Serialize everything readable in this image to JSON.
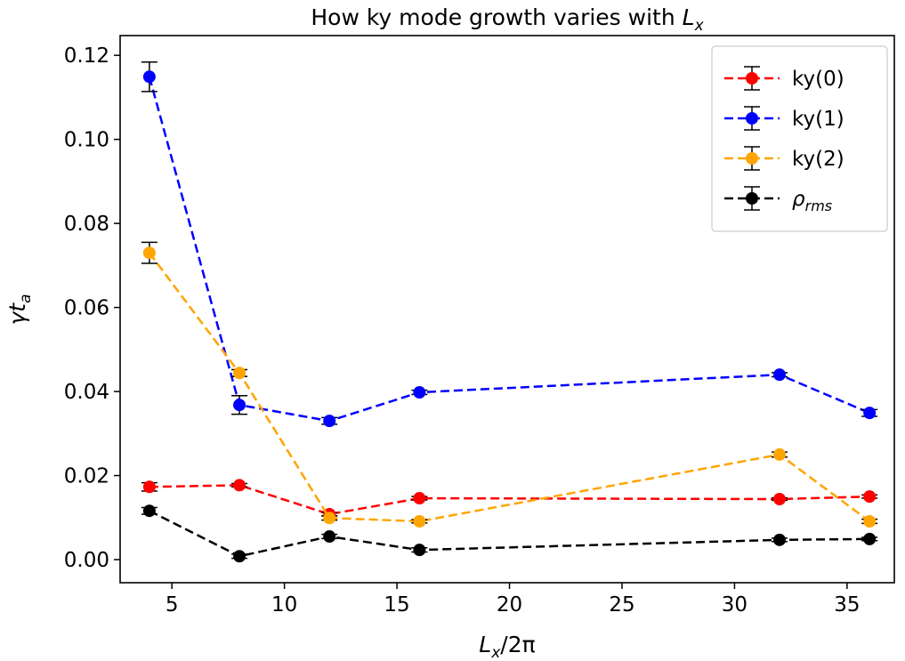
{
  "chart_data": {
    "type": "line",
    "title": {
      "main": "How ky mode growth varies with ",
      "var": "L",
      "sub": "x"
    },
    "xlabel": {
      "var": "L",
      "sub": "x",
      "rest": "/2π"
    },
    "ylabel": {
      "var": "γt",
      "sub": "a"
    },
    "xlim": [
      2.7,
      37.1
    ],
    "ylim": [
      -0.0055,
      0.1247
    ],
    "xticks": [
      5,
      10,
      15,
      20,
      25,
      30,
      35
    ],
    "xtick_labels": [
      "5",
      "10",
      "15",
      "20",
      "25",
      "30",
      "35"
    ],
    "yticks": [
      0.0,
      0.02,
      0.04,
      0.06,
      0.08,
      0.1,
      0.12
    ],
    "ytick_labels": [
      "0.00",
      "0.02",
      "0.04",
      "0.06",
      "0.08",
      "0.10",
      "0.12"
    ],
    "grid": false,
    "legend_position": "top-right",
    "x": [
      4,
      8,
      12,
      16,
      32,
      36
    ],
    "series": [
      {
        "name": "ky(0)",
        "color": "#ff0000",
        "values": [
          0.0173,
          0.0177,
          0.0108,
          0.0146,
          0.0144,
          0.015
        ],
        "errors": [
          0.001,
          0.0004,
          0.0004,
          0.0004,
          0.0003,
          0.0004
        ]
      },
      {
        "name": "ky(1)",
        "color": "#0000ff",
        "values": [
          0.1149,
          0.0368,
          0.033,
          0.0398,
          0.044,
          0.0349
        ],
        "errors": [
          0.0035,
          0.0022,
          0.0008,
          0.0005,
          0.0005,
          0.0008
        ]
      },
      {
        "name": "ky(2)",
        "color": "#ffa500",
        "values": [
          0.073,
          0.0444,
          0.0099,
          0.0091,
          0.025,
          0.0091
        ],
        "errors": [
          0.0025,
          0.0008,
          0.0005,
          0.0004,
          0.0006,
          0.0005
        ]
      },
      {
        "name": "ρ",
        "name_sub": "rms",
        "color": "#000000",
        "values": [
          0.0116,
          0.0008,
          0.0055,
          0.0023,
          0.0047,
          0.0049
        ],
        "errors": [
          0.0008,
          0.0005,
          0.0005,
          0.0005,
          0.0004,
          0.0004
        ]
      }
    ]
  }
}
